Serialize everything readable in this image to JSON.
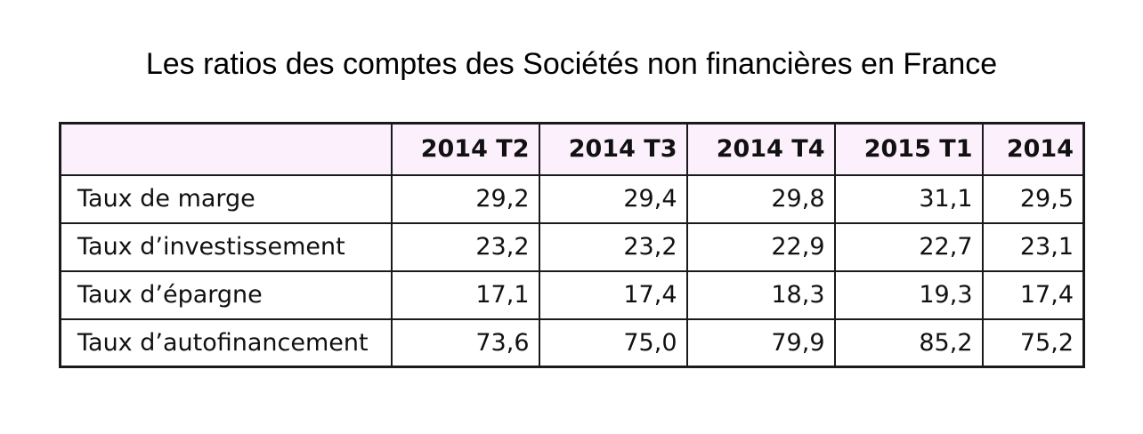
{
  "title": "Les ratios des comptes des Sociétés non financières en France",
  "table": {
    "headers": [
      "",
      "2014 T2",
      "2014 T3",
      "2014 T4",
      "2015 T1",
      "2014"
    ],
    "rows": [
      {
        "label": "Taux de marge",
        "values": [
          "29,2",
          "29,4",
          "29,8",
          "31,1",
          "29,5"
        ]
      },
      {
        "label": "Taux d’investissement",
        "values": [
          "23,2",
          "23,2",
          "22,9",
          "22,7",
          "23,1"
        ]
      },
      {
        "label": "Taux d’épargne",
        "values": [
          "17,1",
          "17,4",
          "18,3",
          "19,3",
          "17,4"
        ]
      },
      {
        "label": "Taux d’autofinancement",
        "values": [
          "73,6",
          "75,0",
          "79,9",
          "85,2",
          "75,2"
        ]
      }
    ]
  },
  "colors": {
    "header_bg": "#fbf0fb",
    "border": "#1a1a1a",
    "text": "#111111"
  }
}
